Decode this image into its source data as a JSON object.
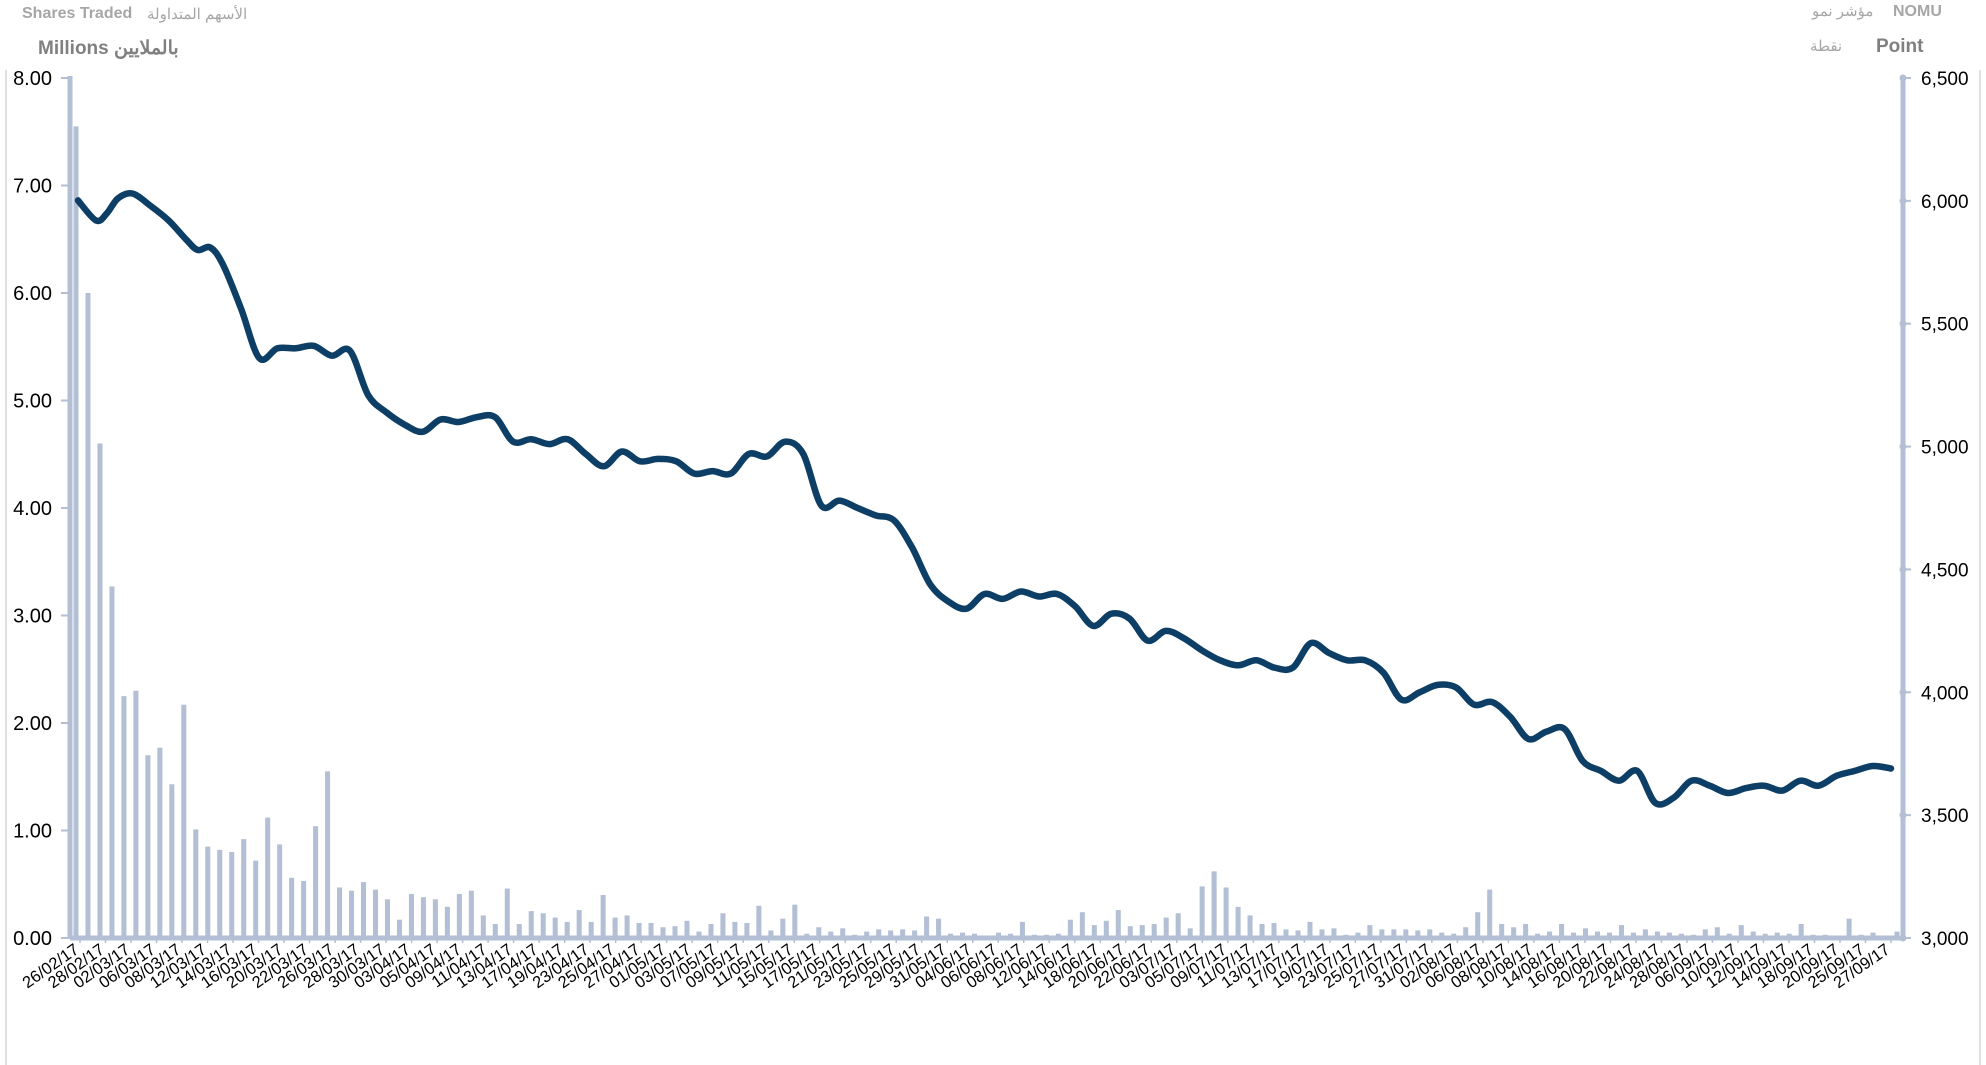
{
  "header": {
    "left_title_en": "Shares Traded",
    "left_title_ar": "الأسهم المتداولة",
    "left_unit": "Millions بالملايين",
    "right_title_en": "NOMU",
    "right_title_ar": "مؤشر نمو",
    "right_unit_en": "Point",
    "right_unit_ar": "نقطة"
  },
  "colors": {
    "line": "#0d3f66",
    "bars": "#b3bfd4",
    "axis": "#b3bfd4",
    "tick_text": "#000000"
  },
  "chart_data": {
    "type": "bar+line",
    "x_tick_labels": [
      "26/02/17",
      "28/02/17",
      "02/03/17",
      "06/03/17",
      "08/03/17",
      "12/03/17",
      "14/03/17",
      "16/03/17",
      "20/03/17",
      "22/03/17",
      "26/03/17",
      "28/03/17",
      "30/03/17",
      "03/04/17",
      "05/04/17",
      "09/04/17",
      "11/04/17",
      "13/04/17",
      "17/04/17",
      "19/04/17",
      "23/04/17",
      "25/04/17",
      "27/04/17",
      "01/05/17",
      "03/05/17",
      "07/05/17",
      "09/05/17",
      "11/05/17",
      "15/05/17",
      "17/05/17",
      "21/05/17",
      "23/05/17",
      "25/05/17",
      "29/05/17",
      "31/05/17",
      "04/06/17",
      "06/06/17",
      "08/06/17",
      "12/06/17",
      "14/06/17",
      "18/06/17",
      "20/06/17",
      "22/06/17",
      "03/07/17",
      "05/07/17",
      "09/07/17",
      "11/07/17",
      "13/07/17",
      "17/07/17",
      "19/07/17",
      "23/07/17",
      "25/07/17",
      "27/07/17",
      "31/07/17",
      "02/08/17",
      "06/08/17",
      "08/08/17",
      "10/08/17",
      "14/08/17",
      "16/08/17",
      "20/08/17",
      "22/08/17",
      "24/08/17",
      "28/08/17",
      "06/09/17",
      "10/09/17",
      "12/09/17",
      "14/09/17",
      "18/09/17",
      "20/09/17",
      "25/09/17",
      "27/09/17"
    ],
    "y_left": {
      "label": "Millions",
      "min": 0,
      "max": 8,
      "ticks": [
        "0.00",
        "1.00",
        "2.00",
        "3.00",
        "4.00",
        "5.00",
        "6.00",
        "7.00",
        "8.00"
      ]
    },
    "y_right": {
      "label": "Point",
      "min": 3000,
      "max": 6500,
      "ticks": [
        "3,000",
        "3,500",
        "4,000",
        "4,500",
        "5,000",
        "5,500",
        "6,000",
        "6,500"
      ]
    },
    "series": [
      {
        "name": "Shares Traded",
        "type": "bar",
        "axis": "left",
        "values": [
          7.55,
          6.0,
          4.6,
          3.27,
          2.25,
          2.3,
          1.7,
          1.77,
          1.43,
          2.17,
          1.01,
          0.85,
          0.82,
          0.8,
          0.92,
          0.72,
          1.12,
          0.87,
          0.56,
          0.53,
          1.04,
          1.55,
          0.47,
          0.44,
          0.52,
          0.45,
          0.36,
          0.17,
          0.41,
          0.38,
          0.36,
          0.29,
          0.41,
          0.44,
          0.21,
          0.13,
          0.46,
          0.13,
          0.25,
          0.23,
          0.19,
          0.15,
          0.26,
          0.15,
          0.4,
          0.19,
          0.21,
          0.14,
          0.14,
          0.1,
          0.11,
          0.16,
          0.06,
          0.13,
          0.23,
          0.15,
          0.14,
          0.3,
          0.07,
          0.18,
          0.31,
          0.04,
          0.1,
          0.06,
          0.09,
          0.03,
          0.06,
          0.08,
          0.07,
          0.08,
          0.07,
          0.2,
          0.18,
          0.04,
          0.05,
          0.04,
          0.02,
          0.05,
          0.04,
          0.15,
          0.03,
          0.03,
          0.04,
          0.17,
          0.24,
          0.12,
          0.16,
          0.26,
          0.11,
          0.12,
          0.13,
          0.19,
          0.23,
          0.09,
          0.48,
          0.62,
          0.47,
          0.29,
          0.21,
          0.13,
          0.14,
          0.08,
          0.07,
          0.15,
          0.08,
          0.09,
          0.03,
          0.05,
          0.12,
          0.08,
          0.08,
          0.08,
          0.07,
          0.08,
          0.05,
          0.04,
          0.1,
          0.24,
          0.45,
          0.13,
          0.1,
          0.13,
          0.04,
          0.06,
          0.13,
          0.05,
          0.09,
          0.06,
          0.05,
          0.12,
          0.05,
          0.08,
          0.06,
          0.05,
          0.04,
          0.03,
          0.08,
          0.1,
          0.04,
          0.12,
          0.06,
          0.04,
          0.05,
          0.04,
          0.13,
          0.03,
          0.03,
          0.02,
          0.18,
          0.03,
          0.05,
          0.02,
          0.06
        ]
      },
      {
        "name": "NOMU",
        "type": "line",
        "axis": "right",
        "points": [
          [
            0,
            6002
          ],
          [
            0.01,
            5920
          ],
          [
            0.016,
            5950
          ],
          [
            0.022,
            6010
          ],
          [
            0.03,
            6030
          ],
          [
            0.04,
            5980
          ],
          [
            0.05,
            5920
          ],
          [
            0.06,
            5840
          ],
          [
            0.066,
            5800
          ],
          [
            0.073,
            5810
          ],
          [
            0.08,
            5740
          ],
          [
            0.09,
            5560
          ],
          [
            0.1,
            5360
          ],
          [
            0.11,
            5400
          ],
          [
            0.12,
            5400
          ],
          [
            0.13,
            5410
          ],
          [
            0.14,
            5370
          ],
          [
            0.15,
            5390
          ],
          [
            0.16,
            5210
          ],
          [
            0.17,
            5140
          ],
          [
            0.18,
            5090
          ],
          [
            0.19,
            5060
          ],
          [
            0.2,
            5110
          ],
          [
            0.21,
            5100
          ],
          [
            0.22,
            5120
          ],
          [
            0.23,
            5120
          ],
          [
            0.24,
            5020
          ],
          [
            0.25,
            5030
          ],
          [
            0.26,
            5010
          ],
          [
            0.27,
            5030
          ],
          [
            0.28,
            4970
          ],
          [
            0.29,
            4920
          ],
          [
            0.3,
            4980
          ],
          [
            0.31,
            4940
          ],
          [
            0.32,
            4950
          ],
          [
            0.33,
            4940
          ],
          [
            0.34,
            4890
          ],
          [
            0.35,
            4900
          ],
          [
            0.36,
            4890
          ],
          [
            0.37,
            4970
          ],
          [
            0.38,
            4960
          ],
          [
            0.39,
            5020
          ],
          [
            0.4,
            4970
          ],
          [
            0.41,
            4760
          ],
          [
            0.42,
            4780
          ],
          [
            0.43,
            4750
          ],
          [
            0.44,
            4720
          ],
          [
            0.45,
            4700
          ],
          [
            0.46,
            4590
          ],
          [
            0.47,
            4440
          ],
          [
            0.48,
            4370
          ],
          [
            0.49,
            4340
          ],
          [
            0.5,
            4400
          ],
          [
            0.51,
            4380
          ],
          [
            0.52,
            4410
          ],
          [
            0.53,
            4390
          ],
          [
            0.54,
            4400
          ],
          [
            0.55,
            4350
          ],
          [
            0.56,
            4270
          ],
          [
            0.57,
            4320
          ],
          [
            0.58,
            4300
          ],
          [
            0.59,
            4210
          ],
          [
            0.6,
            4250
          ],
          [
            0.61,
            4220
          ],
          [
            0.62,
            4170
          ],
          [
            0.63,
            4130
          ],
          [
            0.64,
            4110
          ],
          [
            0.65,
            4130
          ],
          [
            0.66,
            4100
          ],
          [
            0.67,
            4100
          ],
          [
            0.68,
            4200
          ],
          [
            0.69,
            4160
          ],
          [
            0.7,
            4130
          ],
          [
            0.71,
            4130
          ],
          [
            0.72,
            4080
          ],
          [
            0.73,
            3970
          ],
          [
            0.74,
            4000
          ],
          [
            0.75,
            4030
          ],
          [
            0.76,
            4020
          ],
          [
            0.77,
            3950
          ],
          [
            0.78,
            3960
          ],
          [
            0.79,
            3900
          ],
          [
            0.8,
            3810
          ],
          [
            0.81,
            3840
          ],
          [
            0.82,
            3850
          ],
          [
            0.83,
            3720
          ],
          [
            0.84,
            3680
          ],
          [
            0.85,
            3640
          ],
          [
            0.86,
            3680
          ],
          [
            0.87,
            3550
          ],
          [
            0.88,
            3570
          ],
          [
            0.89,
            3640
          ],
          [
            0.9,
            3620
          ],
          [
            0.91,
            3590
          ],
          [
            0.92,
            3610
          ],
          [
            0.93,
            3620
          ],
          [
            0.94,
            3600
          ],
          [
            0.95,
            3640
          ],
          [
            0.96,
            3620
          ],
          [
            0.97,
            3660
          ],
          [
            0.98,
            3680
          ],
          [
            0.99,
            3700
          ],
          [
            1.0,
            3690
          ]
        ]
      }
    ],
    "grid": false,
    "legend": "none"
  }
}
